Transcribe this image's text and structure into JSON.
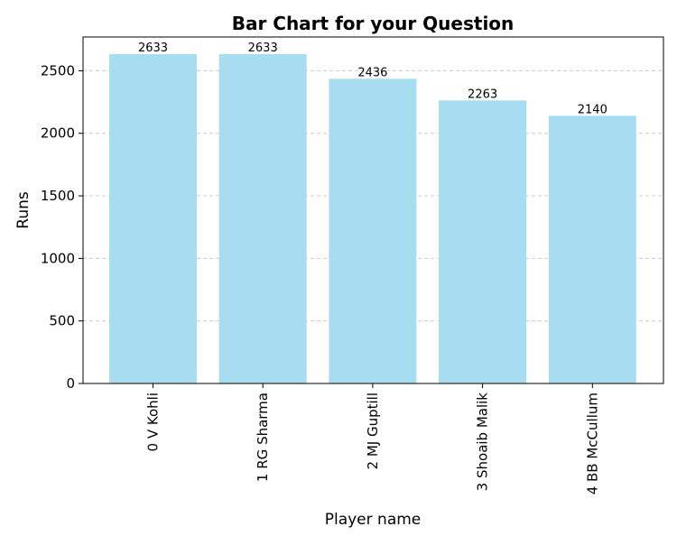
{
  "chart_data": {
    "type": "bar",
    "title": "Bar Chart for your Question",
    "xlabel": "Player name",
    "ylabel": "Runs",
    "categories": [
      "0 V Kohli",
      "1 RG Sharma",
      "2 MJ Guptill",
      "3 Shoaib Malik",
      "4 BB McCullum"
    ],
    "values": [
      2633,
      2633,
      2436,
      2263,
      2140
    ],
    "ylim": [
      0,
      2770
    ],
    "yticks": [
      0,
      500,
      1000,
      1500,
      2000,
      2500
    ],
    "grid": "y-dashed",
    "bar_color": "#a8dcf0",
    "data_labels": true
  }
}
